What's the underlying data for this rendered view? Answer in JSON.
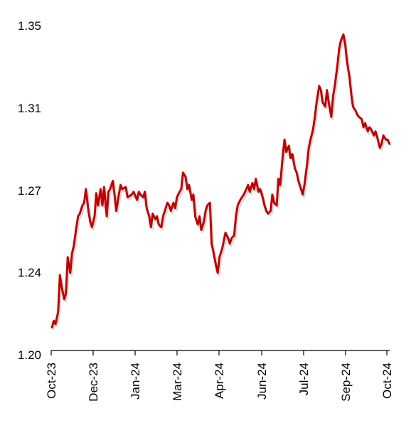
{
  "chart_data": {
    "type": "line",
    "title": "",
    "xlabel": "",
    "ylabel": "",
    "ylim": [
      1.2,
      1.35
    ],
    "yticks": [
      "1.35",
      "1.31",
      "1.27",
      "1.24",
      "1.20"
    ],
    "xticks": [
      "Oct-23",
      "Dec-23",
      "Jan-24",
      "Mar-24",
      "Apr-24",
      "Jun-24",
      "Jul-24",
      "Sep-24",
      "Oct-24"
    ],
    "grid": false,
    "legend": "none",
    "colors": {
      "line": "#c00000",
      "shadow": "#b8b8b8",
      "axis": "#000000"
    },
    "series": [
      {
        "x": [
          "2023-10-02",
          "2023-10-04",
          "2023-10-06",
          "2023-10-09",
          "2023-10-11",
          "2023-10-13",
          "2023-10-16",
          "2023-10-18",
          "2023-10-20",
          "2023-10-23",
          "2023-10-25",
          "2023-10-27",
          "2023-10-30",
          "2023-11-01",
          "2023-11-03",
          "2023-11-06",
          "2023-11-08",
          "2023-11-10",
          "2023-11-13",
          "2023-11-15",
          "2023-11-17",
          "2023-11-20",
          "2023-11-22",
          "2023-11-24",
          "2023-11-27",
          "2023-11-29",
          "2023-12-01",
          "2023-12-04",
          "2023-12-06",
          "2023-12-08",
          "2023-12-11",
          "2023-12-13",
          "2023-12-15",
          "2023-12-18",
          "2023-12-20",
          "2023-12-22",
          "2023-12-26",
          "2023-12-28",
          "2024-01-02",
          "2024-01-04",
          "2024-01-08",
          "2024-01-10",
          "2024-01-12",
          "2024-01-15",
          "2024-01-17",
          "2024-01-19",
          "2024-01-22",
          "2024-01-24",
          "2024-01-26",
          "2024-01-29",
          "2024-01-31",
          "2024-02-02",
          "2024-02-05",
          "2024-02-07",
          "2024-02-09",
          "2024-02-12",
          "2024-02-14",
          "2024-02-16",
          "2024-02-19",
          "2024-02-21",
          "2024-02-23",
          "2024-02-26",
          "2024-02-28",
          "2024-03-01",
          "2024-03-04",
          "2024-03-06",
          "2024-03-08",
          "2024-03-11",
          "2024-03-13",
          "2024-03-15",
          "2024-03-18",
          "2024-03-20",
          "2024-03-22",
          "2024-03-25",
          "2024-03-27",
          "2024-03-29",
          "2024-04-01",
          "2024-04-03",
          "2024-04-05",
          "2024-04-08",
          "2024-04-10",
          "2024-04-12",
          "2024-04-15",
          "2024-04-17",
          "2024-04-19",
          "2024-04-22",
          "2024-04-24",
          "2024-04-26",
          "2024-04-29",
          "2024-05-01",
          "2024-05-03",
          "2024-05-06",
          "2024-05-08",
          "2024-05-10",
          "2024-05-13",
          "2024-05-15",
          "2024-05-17",
          "2024-05-20",
          "2024-05-22",
          "2024-05-24",
          "2024-05-27",
          "2024-05-29",
          "2024-05-31",
          "2024-06-03",
          "2024-06-05",
          "2024-06-07",
          "2024-06-10",
          "2024-06-12",
          "2024-06-14",
          "2024-06-17",
          "2024-06-19",
          "2024-06-21",
          "2024-06-24",
          "2024-06-26",
          "2024-06-28",
          "2024-07-01",
          "2024-07-03",
          "2024-07-05",
          "2024-07-08",
          "2024-07-10",
          "2024-07-12",
          "2024-07-15",
          "2024-07-17",
          "2024-07-19",
          "2024-07-22",
          "2024-07-24",
          "2024-07-26",
          "2024-07-29",
          "2024-07-31",
          "2024-08-02",
          "2024-08-05",
          "2024-08-07",
          "2024-08-09",
          "2024-08-12",
          "2024-08-14",
          "2024-08-16",
          "2024-08-19",
          "2024-08-21",
          "2024-08-23",
          "2024-08-26",
          "2024-08-28",
          "2024-08-30",
          "2024-09-02",
          "2024-09-04",
          "2024-09-06",
          "2024-09-09",
          "2024-09-11",
          "2024-09-13",
          "2024-09-16",
          "2024-09-18",
          "2024-09-20",
          "2024-09-23",
          "2024-09-25",
          "2024-09-27",
          "2024-09-30",
          "2024-10-02",
          "2024-10-04",
          "2024-10-07",
          "2024-10-09",
          "2024-10-11",
          "2024-10-14",
          "2024-10-16",
          "2024-10-18",
          "2024-10-21",
          "2024-10-23",
          "2024-10-25"
        ],
        "values": [
          1.2126,
          1.2158,
          1.2142,
          1.2202,
          1.238,
          1.2325,
          1.2262,
          1.229,
          1.245,
          1.239,
          1.2465,
          1.249,
          1.256,
          1.26,
          1.261,
          1.264,
          1.265,
          1.27,
          1.262,
          1.258,
          1.256,
          1.26,
          1.2685,
          1.264,
          1.27,
          1.264,
          1.271,
          1.26,
          1.269,
          1.27,
          1.274,
          1.268,
          1.262,
          1.268,
          1.272,
          1.27,
          1.271,
          1.267,
          1.268,
          1.269,
          1.266,
          1.269,
          1.268,
          1.267,
          1.269,
          1.263,
          1.26,
          1.256,
          1.261,
          1.259,
          1.26,
          1.257,
          1.256,
          1.26,
          1.262,
          1.265,
          1.264,
          1.262,
          1.265,
          1.263,
          1.267,
          1.269,
          1.27,
          1.278,
          1.276,
          1.27,
          1.272,
          1.266,
          1.268,
          1.26,
          1.257,
          1.26,
          1.255,
          1.258,
          1.262,
          1.264,
          1.265,
          1.25,
          1.247,
          1.242,
          1.239,
          1.245,
          1.248,
          1.251,
          1.254,
          1.252,
          1.25,
          1.252,
          1.253,
          1.26,
          1.264,
          1.266,
          1.267,
          1.268,
          1.27,
          1.272,
          1.269,
          1.273,
          1.27,
          1.275,
          1.269,
          1.27,
          1.268,
          1.264,
          1.262,
          1.261,
          1.262,
          1.268,
          1.265,
          1.264,
          1.275,
          1.272,
          1.286,
          1.294,
          1.288,
          1.291,
          1.285,
          1.287,
          1.28,
          1.278,
          1.274,
          1.27,
          1.268,
          1.272,
          1.282,
          1.29,
          1.294,
          1.299,
          1.305,
          1.312,
          1.32,
          1.318,
          1.312,
          1.31,
          1.318,
          1.312,
          1.305,
          1.315,
          1.32,
          1.33,
          1.338,
          1.342,
          1.345,
          1.34,
          1.332,
          1.324,
          1.316,
          1.31,
          1.308,
          1.306,
          1.305,
          1.304,
          1.3,
          1.302,
          1.298,
          1.3,
          1.299,
          1.296,
          1.298,
          1.295,
          1.29,
          1.292,
          1.296,
          1.294,
          1.294,
          1.292
        ]
      }
    ]
  }
}
